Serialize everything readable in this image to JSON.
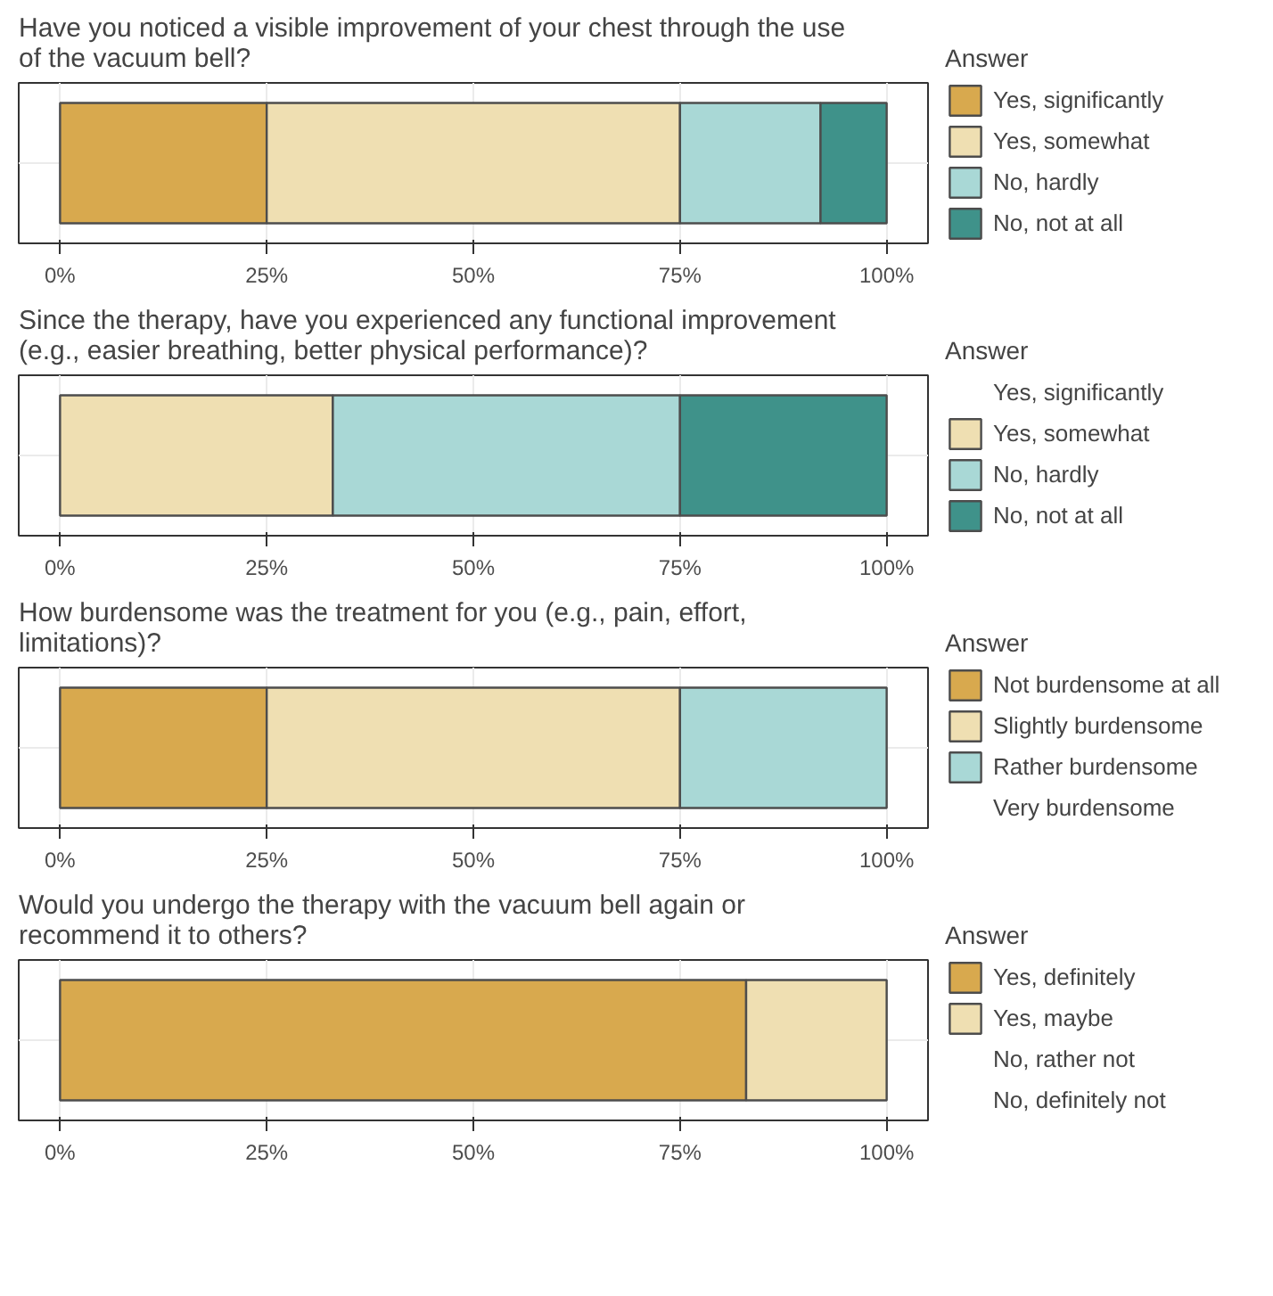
{
  "chart_data": [
    {
      "type": "bar",
      "orientation": "horizontal",
      "stacked": true,
      "title": "Have you noticed a visible improvement of your chest through the use of the vacuum bell?",
      "legend_title": "Answer",
      "legend": "right",
      "grid": true,
      "tick_labels": "x",
      "categories": [
        null
      ],
      "xlim": [
        -5,
        105
      ],
      "xticks": [
        {
          "value": 0,
          "label": "0%"
        },
        {
          "value": 25,
          "label": "25%"
        },
        {
          "value": 50,
          "label": "50%"
        },
        {
          "value": 75,
          "label": "75%"
        },
        {
          "value": 100,
          "label": "100%"
        }
      ],
      "series": [
        {
          "name": "Yes, significantly",
          "color": "#d8a94e",
          "values": [
            25
          ]
        },
        {
          "name": "Yes, somewhat",
          "color": "#efdfb2",
          "values": [
            50
          ]
        },
        {
          "name": "No, hardly",
          "color": "#a9d8d6",
          "values": [
            17
          ]
        },
        {
          "name": "No, not at all",
          "color": "#3f928a",
          "values": [
            8
          ]
        }
      ]
    },
    {
      "type": "bar",
      "orientation": "horizontal",
      "stacked": true,
      "title": "Since the therapy, have you experienced any functional improvement (e.g., easier breathing, better physical performance)?",
      "legend_title": "Answer",
      "legend": "right",
      "grid": true,
      "tick_labels": "x",
      "categories": [
        null
      ],
      "xlim": [
        -5,
        105
      ],
      "xticks": [
        {
          "value": 0,
          "label": "0%"
        },
        {
          "value": 25,
          "label": "25%"
        },
        {
          "value": 50,
          "label": "50%"
        },
        {
          "value": 75,
          "label": "75%"
        },
        {
          "value": 100,
          "label": "100%"
        }
      ],
      "series": [
        {
          "name": "Yes, significantly",
          "color": null,
          "values": [
            0
          ]
        },
        {
          "name": "Yes, somewhat",
          "color": "#efdfb2",
          "values": [
            33
          ]
        },
        {
          "name": "No, hardly",
          "color": "#a9d8d6",
          "values": [
            42
          ]
        },
        {
          "name": "No, not at all",
          "color": "#3f928a",
          "values": [
            25
          ]
        }
      ]
    },
    {
      "type": "bar",
      "orientation": "horizontal",
      "stacked": true,
      "title": "How burdensome was the treatment for you (e.g., pain, effort, limitations)?",
      "legend_title": "Answer",
      "legend": "right",
      "grid": true,
      "tick_labels": "x",
      "categories": [
        null
      ],
      "xlim": [
        -5,
        105
      ],
      "xticks": [
        {
          "value": 0,
          "label": "0%"
        },
        {
          "value": 25,
          "label": "25%"
        },
        {
          "value": 50,
          "label": "50%"
        },
        {
          "value": 75,
          "label": "75%"
        },
        {
          "value": 100,
          "label": "100%"
        }
      ],
      "series": [
        {
          "name": "Not burdensome at all",
          "color": "#d8a94e",
          "values": [
            25
          ]
        },
        {
          "name": "Slightly burdensome",
          "color": "#efdfb2",
          "values": [
            50
          ]
        },
        {
          "name": "Rather burdensome",
          "color": "#a9d8d6",
          "values": [
            25
          ]
        },
        {
          "name": "Very burdensome",
          "color": null,
          "values": [
            0
          ]
        }
      ]
    },
    {
      "type": "bar",
      "orientation": "horizontal",
      "stacked": true,
      "title": "Would you undergo the therapy with the vacuum bell again or recommend it to others?",
      "legend_title": "Answer",
      "legend": "right",
      "grid": true,
      "tick_labels": "x",
      "categories": [
        null
      ],
      "xlim": [
        -5,
        105
      ],
      "xticks": [
        {
          "value": 0,
          "label": "0%"
        },
        {
          "value": 25,
          "label": "25%"
        },
        {
          "value": 50,
          "label": "50%"
        },
        {
          "value": 75,
          "label": "75%"
        },
        {
          "value": 100,
          "label": "100%"
        }
      ],
      "series": [
        {
          "name": "Yes, definitely",
          "color": "#d8a94e",
          "values": [
            83
          ]
        },
        {
          "name": "Yes, maybe",
          "color": "#efdfb2",
          "values": [
            17
          ]
        },
        {
          "name": "No, rather not",
          "color": null,
          "values": [
            0
          ]
        },
        {
          "name": "No, definitely not",
          "color": null,
          "values": [
            0
          ]
        }
      ]
    }
  ]
}
